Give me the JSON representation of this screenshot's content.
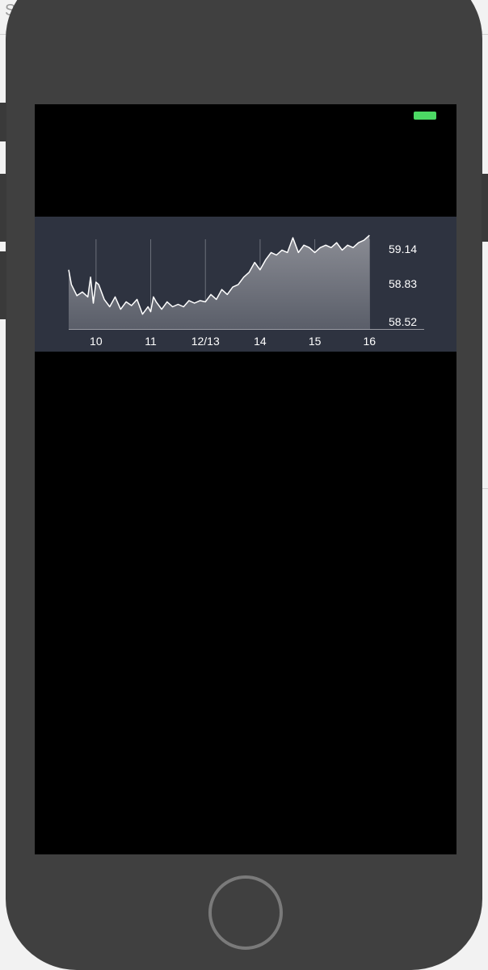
{
  "backdrop": {
    "text": "Se"
  },
  "status_bar": {
    "battery_color": "#4cd964"
  },
  "chart_data": {
    "type": "area",
    "title": "",
    "xlabel": "",
    "ylabel": "",
    "y_axis_side": "right",
    "grid": "vertical",
    "x_tick_labels": [
      "10",
      "11",
      "12/13",
      "14",
      "15",
      "16"
    ],
    "x_ticks": [
      10,
      11,
      12,
      13,
      14,
      15
    ],
    "y_tick_labels": [
      "59.14",
      "58.83",
      "58.52"
    ],
    "y_ticks": [
      59.14,
      58.83,
      58.52
    ],
    "xlim": [
      9.5,
      16.0
    ],
    "ylim": [
      58.44,
      59.22
    ],
    "series": [
      {
        "x": [
          9.5,
          9.55,
          9.65,
          9.75,
          9.85,
          9.9,
          9.95,
          10.0,
          10.05,
          10.15,
          10.25,
          10.35,
          10.45,
          10.55,
          10.65,
          10.75,
          10.85,
          10.95,
          11.0,
          11.05,
          11.1,
          11.2,
          11.3,
          11.4,
          11.5,
          11.6,
          11.7,
          11.8,
          11.9,
          12.0,
          12.1,
          12.2,
          12.3,
          12.4,
          12.5,
          12.6,
          12.7,
          12.8,
          12.9,
          13.0,
          13.1,
          13.2,
          13.3,
          13.4,
          13.5,
          13.6,
          13.7,
          13.8,
          13.9,
          14.0,
          14.1,
          14.2,
          14.3,
          14.4,
          14.5,
          14.6,
          14.7,
          14.8,
          14.9,
          15.0
        ],
        "y": [
          58.92,
          58.8,
          58.71,
          58.74,
          58.7,
          58.86,
          58.65,
          58.82,
          58.8,
          58.68,
          58.62,
          58.7,
          58.6,
          58.66,
          58.63,
          58.68,
          58.56,
          58.62,
          58.58,
          58.7,
          58.66,
          58.6,
          58.66,
          58.62,
          58.64,
          58.62,
          58.67,
          58.65,
          58.67,
          58.66,
          58.72,
          58.68,
          58.76,
          58.72,
          58.78,
          58.8,
          58.86,
          58.9,
          58.98,
          58.92,
          59.0,
          59.06,
          59.04,
          59.08,
          59.06,
          59.18,
          59.06,
          59.12,
          59.1,
          59.06,
          59.1,
          59.12,
          59.1,
          59.14,
          59.08,
          59.12,
          59.1,
          59.14,
          59.16,
          59.2
        ]
      }
    ]
  }
}
